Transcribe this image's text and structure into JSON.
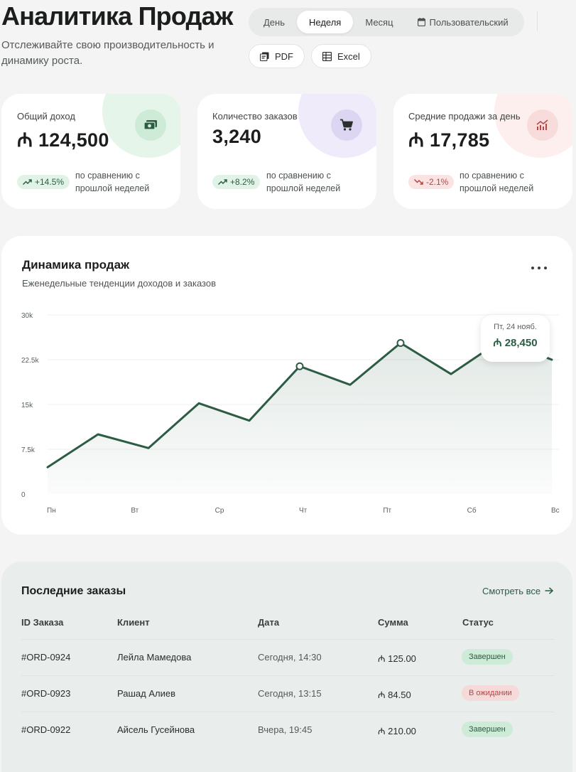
{
  "header": {
    "title": "Аналитика Продаж",
    "subtitle": "Отслеживайте свою производительность и динамику роста."
  },
  "period_tabs": [
    {
      "label": "День",
      "active": false
    },
    {
      "label": "Неделя",
      "active": true
    },
    {
      "label": "Месяц",
      "active": false
    },
    {
      "label": "Пользовательский",
      "active": false
    }
  ],
  "export": {
    "pdf_label": "PDF",
    "excel_label": "Excel"
  },
  "currency_symbol": "₼",
  "stats": [
    {
      "label": "Общий доход",
      "value": "₼ 124,500",
      "trend": "+14.5%",
      "trend_dir": "up",
      "note": "по сравнению с прошлой неделей",
      "icon": "money-icon",
      "accent": "#cdebd7",
      "glow": "#e6f5ea"
    },
    {
      "label": "Количество заказов",
      "value": "3,240",
      "trend": "+8.2%",
      "trend_dir": "up",
      "note": "по сравнению с прошлой неделей",
      "icon": "cart-icon",
      "accent": "#ddd6f3",
      "glow": "#efebfa"
    },
    {
      "label": "Средние продажи за день",
      "value": "₼ 17,785",
      "trend": "-2.1%",
      "trend_dir": "down",
      "note": "по сравнению с прошлой неделей",
      "icon": "analytics-icon",
      "accent": "#f8dcdc",
      "glow": "#fcefee"
    }
  ],
  "chart": {
    "title": "Динамика продаж",
    "subtitle": "Еженедельные тенденции доходов и заказов",
    "tooltip": {
      "date": "Пт, 24 нояб.",
      "value": "₼ 28,450"
    }
  },
  "chart_data": {
    "type": "area",
    "x_ticks": [
      "Пн",
      "Вт",
      "Ср",
      "Чт",
      "Пт",
      "Сб",
      "Вс"
    ],
    "y_ticks": [
      "30k",
      "22.5k",
      "15k",
      "7.5k",
      "0"
    ],
    "ylim": [
      0,
      30000
    ],
    "x": [
      0,
      0.6,
      1.2,
      1.8,
      2.4,
      3.0,
      3.6,
      4.2,
      4.8,
      5.4,
      6.0
    ],
    "series": [
      {
        "values": [
          4500,
          10000,
          7700,
          15200,
          12300,
          21400,
          18300,
          25300,
          20100,
          25800,
          22500
        ]
      }
    ],
    "markers": [
      5,
      7,
      9
    ],
    "line_color": "#2c5c43",
    "grid": true
  },
  "orders": {
    "title": "Последние заказы",
    "view_all": "Смотреть все",
    "columns": [
      "ID Заказа",
      "Клиент",
      "Дата",
      "Сумма",
      "Статус"
    ],
    "rows": [
      {
        "id": "#ORD-0924",
        "client": "Лейла Мамедова",
        "date": "Сегодня, 14:30",
        "amount": "₼ 125.00",
        "status": "Завершен",
        "status_type": "done"
      },
      {
        "id": "#ORD-0923",
        "client": "Рашад Алиев",
        "date": "Сегодня, 13:15",
        "amount": "₼ 84.50",
        "status": "В ожидании",
        "status_type": "pending"
      },
      {
        "id": "#ORD-0922",
        "client": "Айсель Гусейнова",
        "date": "Вчера, 19:45",
        "amount": "₼ 210.00",
        "status": "Завершен",
        "status_type": "done"
      }
    ]
  }
}
